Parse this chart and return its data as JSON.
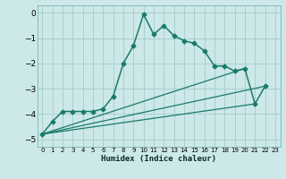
{
  "xlabel": "Humidex (Indice chaleur)",
  "ylabel": "",
  "background_color": "#cce8e8",
  "grid_color": "#aacfcf",
  "line_color": "#1a7a6a",
  "xlim": [
    -0.5,
    23.5
  ],
  "ylim": [
    -5.3,
    0.3
  ],
  "xticks": [
    0,
    1,
    2,
    3,
    4,
    5,
    6,
    7,
    8,
    9,
    10,
    11,
    12,
    13,
    14,
    15,
    16,
    17,
    18,
    19,
    20,
    21,
    22,
    23
  ],
  "yticks": [
    0,
    -1,
    -2,
    -3,
    -4,
    -5
  ],
  "main_series": {
    "x": [
      0,
      1,
      2,
      3,
      4,
      5,
      6,
      7,
      8,
      9,
      10,
      11,
      12,
      13,
      14,
      15,
      16,
      17,
      18,
      19,
      20,
      21,
      22
    ],
    "y": [
      -4.8,
      -4.3,
      -3.9,
      -3.9,
      -3.9,
      -3.9,
      -3.8,
      -3.3,
      -2.0,
      -1.3,
      -0.05,
      -0.85,
      -0.5,
      -0.9,
      -1.1,
      -1.2,
      -1.5,
      -2.1,
      -2.1,
      -2.3,
      -2.2,
      -3.6,
      -2.9
    ]
  },
  "straight_lines": [
    {
      "x": [
        0,
        22
      ],
      "y": [
        -4.8,
        -2.9
      ]
    },
    {
      "x": [
        0,
        21
      ],
      "y": [
        -4.8,
        -3.6
      ]
    },
    {
      "x": [
        0,
        20
      ],
      "y": [
        -4.8,
        -2.2
      ]
    }
  ]
}
